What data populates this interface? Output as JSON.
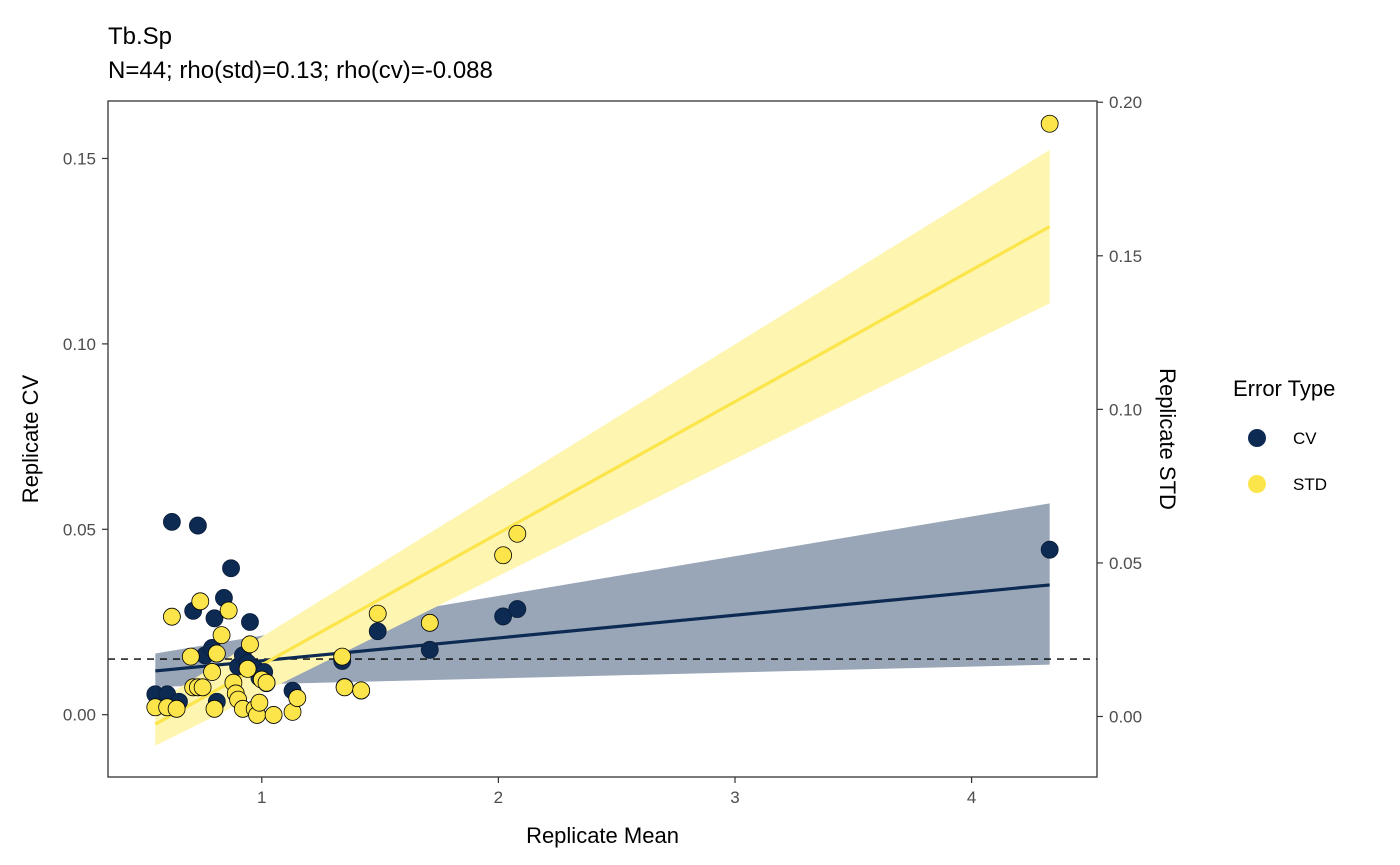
{
  "chart_data": {
    "type": "scatter",
    "title": "Tb.Sp",
    "subtitle": "N=44; rho(std)=0.13; rho(cv)=-0.088",
    "xlabel": "Replicate Mean",
    "ylabel": "Replicate CV",
    "y2label": "Replicate STD",
    "xlim": [
      0.35,
      4.53
    ],
    "ylim": [
      -0.0168,
      0.1655
    ],
    "y2lim": [
      -0.0197,
      0.2004
    ],
    "xticks": [
      1,
      2,
      3,
      4
    ],
    "yticks": [
      0.0,
      0.05,
      0.1,
      0.15
    ],
    "ytick_labels": [
      "0.00",
      "0.05",
      "0.10",
      "0.15"
    ],
    "y2ticks": [
      0.0,
      0.05,
      0.1,
      0.15,
      0.2
    ],
    "y2tick_labels": [
      "0.00",
      "0.05",
      "0.10",
      "0.15",
      "0.20"
    ],
    "reference_line": {
      "y": 0.015,
      "style": "dashed",
      "color": "#000000"
    },
    "legend": {
      "title": "Error Type",
      "position": "right",
      "entries": [
        {
          "label": "CV",
          "color": "#0d2a52"
        },
        {
          "label": "STD",
          "color": "#fbe54a"
        }
      ]
    },
    "series": [
      {
        "name": "CV",
        "axis": "left",
        "color": "#0d2a52",
        "points": [
          [
            0.55,
            0.0055
          ],
          [
            0.6,
            0.0055
          ],
          [
            0.62,
            0.052
          ],
          [
            0.65,
            0.0035
          ],
          [
            0.71,
            0.028
          ],
          [
            0.73,
            0.051
          ],
          [
            0.76,
            0.016
          ],
          [
            0.79,
            0.018
          ],
          [
            0.8,
            0.026
          ],
          [
            0.81,
            0.0035
          ],
          [
            0.84,
            0.0315
          ],
          [
            0.87,
            0.0395
          ],
          [
            0.9,
            0.013
          ],
          [
            0.92,
            0.016
          ],
          [
            0.94,
            0.014
          ],
          [
            0.95,
            0.025
          ],
          [
            0.97,
            0.0125
          ],
          [
            0.99,
            0.01
          ],
          [
            1.01,
            0.0115
          ],
          [
            1.02,
            0.0085
          ],
          [
            1.13,
            0.0065
          ],
          [
            1.34,
            0.0145
          ],
          [
            1.35,
            0.0075
          ],
          [
            1.42,
            0.0065
          ],
          [
            1.49,
            0.0225
          ],
          [
            1.71,
            0.0175
          ],
          [
            2.02,
            0.0265
          ],
          [
            2.08,
            0.0285
          ],
          [
            4.33,
            0.0445
          ]
        ],
        "fit": {
          "x": [
            0.55,
            4.33
          ],
          "y": [
            0.0118,
            0.035
          ]
        },
        "band": {
          "x": [
            0.55,
            4.33
          ],
          "lower": [
            0.0075,
            0.0135
          ],
          "upper": [
            0.0165,
            0.057
          ]
        }
      },
      {
        "name": "STD",
        "axis": "right",
        "color": "#fbe54a",
        "points": [
          [
            0.55,
            0.003
          ],
          [
            0.6,
            0.003
          ],
          [
            0.62,
            0.0325
          ],
          [
            0.64,
            0.0025
          ],
          [
            0.7,
            0.0195
          ],
          [
            0.71,
            0.0095
          ],
          [
            0.73,
            0.0095
          ],
          [
            0.74,
            0.0375
          ],
          [
            0.75,
            0.0095
          ],
          [
            0.79,
            0.0145
          ],
          [
            0.8,
            0.0025
          ],
          [
            0.81,
            0.0205
          ],
          [
            0.83,
            0.0265
          ],
          [
            0.86,
            0.0345
          ],
          [
            0.88,
            0.011
          ],
          [
            0.89,
            0.0075
          ],
          [
            0.9,
            0.0055
          ],
          [
            0.92,
            0.0025
          ],
          [
            0.94,
            0.0155
          ],
          [
            0.95,
            0.0235
          ],
          [
            0.97,
            0.0025
          ],
          [
            0.98,
            0.0005
          ],
          [
            0.99,
            0.0045
          ],
          [
            1.0,
            0.012
          ],
          [
            1.02,
            0.011
          ],
          [
            1.05,
            0.0005
          ],
          [
            1.13,
            0.0015
          ],
          [
            1.15,
            0.006
          ],
          [
            1.34,
            0.0195
          ],
          [
            1.35,
            0.0095
          ],
          [
            1.42,
            0.0085
          ],
          [
            1.49,
            0.0335
          ],
          [
            1.71,
            0.0305
          ],
          [
            2.02,
            0.0525
          ],
          [
            2.08,
            0.0595
          ],
          [
            4.33,
            0.193
          ]
        ],
        "fit": {
          "x": [
            0.55,
            4.33
          ],
          "y": [
            -0.0025,
            0.1595
          ]
        },
        "band": {
          "x": [
            0.55,
            4.33
          ],
          "lower": [
            -0.0095,
            0.1345
          ],
          "upper": [
            0.0045,
            0.1845
          ]
        }
      }
    ]
  }
}
